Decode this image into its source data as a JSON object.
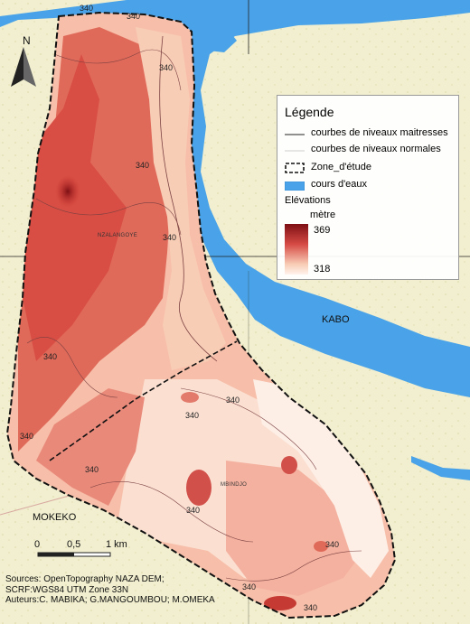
{
  "legend": {
    "title": "Légende",
    "items": [
      {
        "label": "courbes de niveaux maitresses",
        "symbol": "line-major"
      },
      {
        "label": "courbes de niveaux normales",
        "symbol": "line-minor"
      },
      {
        "label": "Zone_d'étude",
        "symbol": "dashed-outline"
      },
      {
        "label": "cours d'eaux",
        "symbol": "blue-fill"
      }
    ],
    "elevation_title": "Elévations",
    "elevation_unit": "mètre",
    "elevation_max": "369",
    "elevation_min": "318"
  },
  "places": {
    "kabo": "KABO",
    "mokeko": "MOKEKO",
    "nzalangoye": "NZALANGOYE",
    "mbindjo": "MBINDJO"
  },
  "north_arrow": {
    "letter": "N",
    "icon": "north-arrow-icon"
  },
  "scale_bar": {
    "ticks": [
      "0",
      "0,5",
      "1 km"
    ]
  },
  "contour_value": "340",
  "sources": {
    "line1": "Sources: OpenTopography NAZA DEM;",
    "line2": "SCRF:WGS84 UTM  Zone 33N",
    "line3": "Auteurs:C. MABIKA; G.MANGOUMBOU; M.OMEKA"
  },
  "colors": {
    "background": "#f1efcf",
    "water": "#4aa3e8",
    "elevation_high": "#7d0f14",
    "elevation_mid": "#e06a5a",
    "elevation_low": "#fff3ec"
  }
}
